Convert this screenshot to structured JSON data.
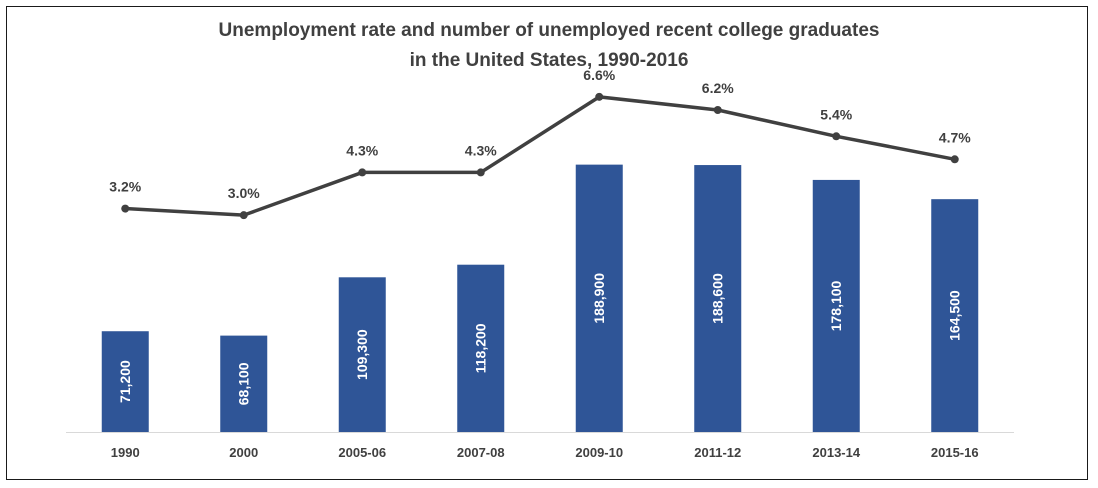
{
  "chart_data": {
    "type": "bar+line",
    "title_lines": [
      "Unemployment rate and number of unemployed recent college graduates",
      "in the United States, 1990-2016"
    ],
    "categories": [
      "1990",
      "2000",
      "2005-06",
      "2007-08",
      "2009-10",
      "2011-12",
      "2013-14",
      "2015-16"
    ],
    "series": [
      {
        "type": "bar",
        "values": [
          71200,
          68100,
          109300,
          118200,
          188900,
          188600,
          178100,
          164500
        ],
        "labels": [
          "71,200",
          "68,100",
          "109,300",
          "118,200",
          "188,900",
          "188,600",
          "178,100",
          "164,500"
        ],
        "color": "#2f5597"
      },
      {
        "type": "line",
        "values": [
          3.2,
          3.0,
          4.3,
          4.3,
          6.6,
          6.2,
          5.4,
          4.7
        ],
        "labels": [
          "3.2%",
          "3.0%",
          "4.3%",
          "4.3%",
          "6.6%",
          "6.2%",
          "5.4%",
          "4.7%"
        ],
        "color": "#404040"
      }
    ],
    "bar_ylim": [
      0,
      260000
    ],
    "line_ylim": [
      -3.6,
      7.6
    ],
    "legend": "none",
    "grid": false
  }
}
